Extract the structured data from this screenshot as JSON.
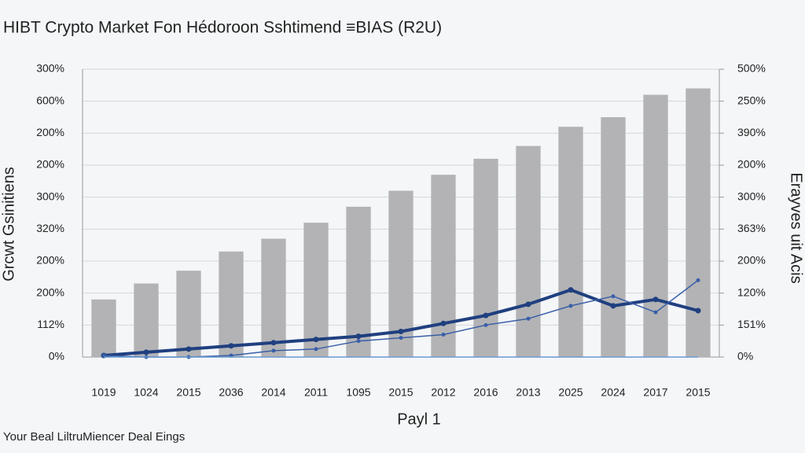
{
  "chart_data": {
    "type": "bar",
    "title": "HIBT Crypto Market Fon Hédoroon Sshtimend ≡BIAS (R2U)",
    "y_label": "Grcwt Gsinitiens",
    "y2_label": "Erayves uit Acis",
    "x_label": "Payl 1",
    "footer": "Your Beal LiltruMiencer Deal Eings",
    "categories": [
      "1019",
      "1024",
      "2015",
      "2036",
      "2014",
      "2011",
      "1095",
      "2015",
      "2012",
      "2016",
      "2013",
      "2025",
      "2024",
      "2017",
      "2015"
    ],
    "values": [
      1.8,
      2.3,
      2.7,
      3.3,
      3.7,
      4.2,
      4.7,
      5.2,
      5.7,
      6.2,
      6.6,
      7.2,
      7.5,
      8.2,
      8.4
    ],
    "color": "#b3b3b5",
    "lines": [
      {
        "color": "#1f3f7f",
        "values": [
          0.05,
          0.15,
          0.25,
          0.35,
          0.45,
          0.55,
          0.65,
          0.8,
          1.05,
          1.3,
          1.65,
          2.1,
          1.6,
          1.8,
          1.45
        ]
      },
      {
        "color": "#3a5fa8",
        "values": [
          0.05,
          0,
          0,
          0.05,
          0.2,
          0.25,
          0.5,
          0.6,
          0.7,
          1.0,
          1.2,
          1.6,
          1.9,
          1.4,
          2.4
        ]
      },
      {
        "color": "#6a9ad0",
        "values": [
          0,
          0,
          0,
          0,
          0,
          0,
          0,
          0,
          0,
          0,
          0,
          0,
          0,
          0,
          0
        ]
      }
    ],
    "ylim": [
      0,
      9
    ],
    "yticks": [
      {
        "value": 0,
        "label": "0%"
      },
      {
        "value": 1,
        "label": "112%"
      },
      {
        "value": 2,
        "label": "200%"
      },
      {
        "value": 3,
        "label": "200%"
      },
      {
        "value": 4,
        "label": "320%"
      },
      {
        "value": 5,
        "label": "300%"
      },
      {
        "value": 6,
        "label": "200%"
      },
      {
        "value": 7,
        "label": "200%"
      },
      {
        "value": 8,
        "label": "600%"
      },
      {
        "value": 9,
        "label": "300%"
      }
    ],
    "y2lim": [
      0,
      9
    ],
    "y2ticks": [
      {
        "value": 0,
        "label": "0%"
      },
      {
        "value": 1,
        "label": "151%"
      },
      {
        "value": 2,
        "label": "120%"
      },
      {
        "value": 3,
        "label": "200%"
      },
      {
        "value": 4,
        "label": "363%"
      },
      {
        "value": 5,
        "label": "300%"
      },
      {
        "value": 6,
        "label": "200%"
      },
      {
        "value": 7,
        "label": "390%"
      },
      {
        "value": 8,
        "label": "250%"
      },
      {
        "value": 9,
        "label": "500%"
      }
    ],
    "grid": true
  }
}
